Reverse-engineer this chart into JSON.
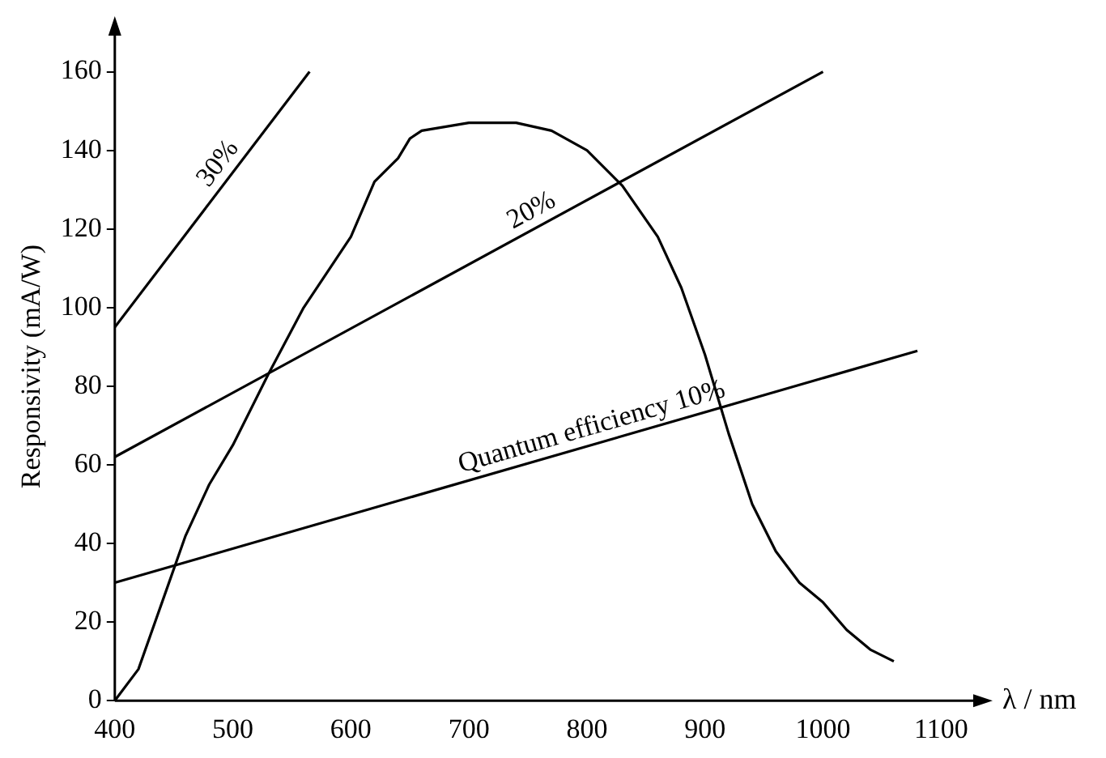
{
  "chart_data": {
    "type": "line",
    "xlabel": "λ / nm",
    "ylabel": "Responsivity (mA/W)",
    "xlim": [
      400,
      1130
    ],
    "xticks": [
      400,
      500,
      600,
      700,
      800,
      900,
      1000,
      1100
    ],
    "ylim": [
      0,
      170
    ],
    "yticks": [
      0,
      20,
      40,
      60,
      80,
      100,
      120,
      140,
      160
    ],
    "grid": false,
    "legend": false,
    "marker": "none",
    "line_style": "solid",
    "series": [
      {
        "color": "#000000",
        "x": [
          400,
          420,
          440,
          460,
          480,
          500,
          530,
          560,
          600,
          620,
          640,
          650,
          660,
          700,
          740,
          770,
          800,
          830,
          860,
          880,
          900,
          920,
          940,
          960,
          980,
          1000,
          1020,
          1040,
          1060
        ],
        "values": [
          0,
          8,
          25,
          42,
          55,
          65,
          83,
          100,
          118,
          132,
          138,
          143,
          145,
          147,
          147,
          145,
          140,
          131,
          118,
          105,
          88,
          68,
          50,
          38,
          30,
          25,
          18,
          13,
          10
        ]
      },
      {
        "name": "30%",
        "color": "#000000",
        "x": [
          400,
          565
        ],
        "values": [
          95,
          160
        ]
      },
      {
        "name": "20%",
        "color": "#000000",
        "x": [
          400,
          1000
        ],
        "values": [
          62,
          160
        ]
      },
      {
        "name": "Quantum efficiency 10%",
        "color": "#000000",
        "x": [
          400,
          1080
        ],
        "values": [
          30,
          89
        ]
      }
    ]
  }
}
